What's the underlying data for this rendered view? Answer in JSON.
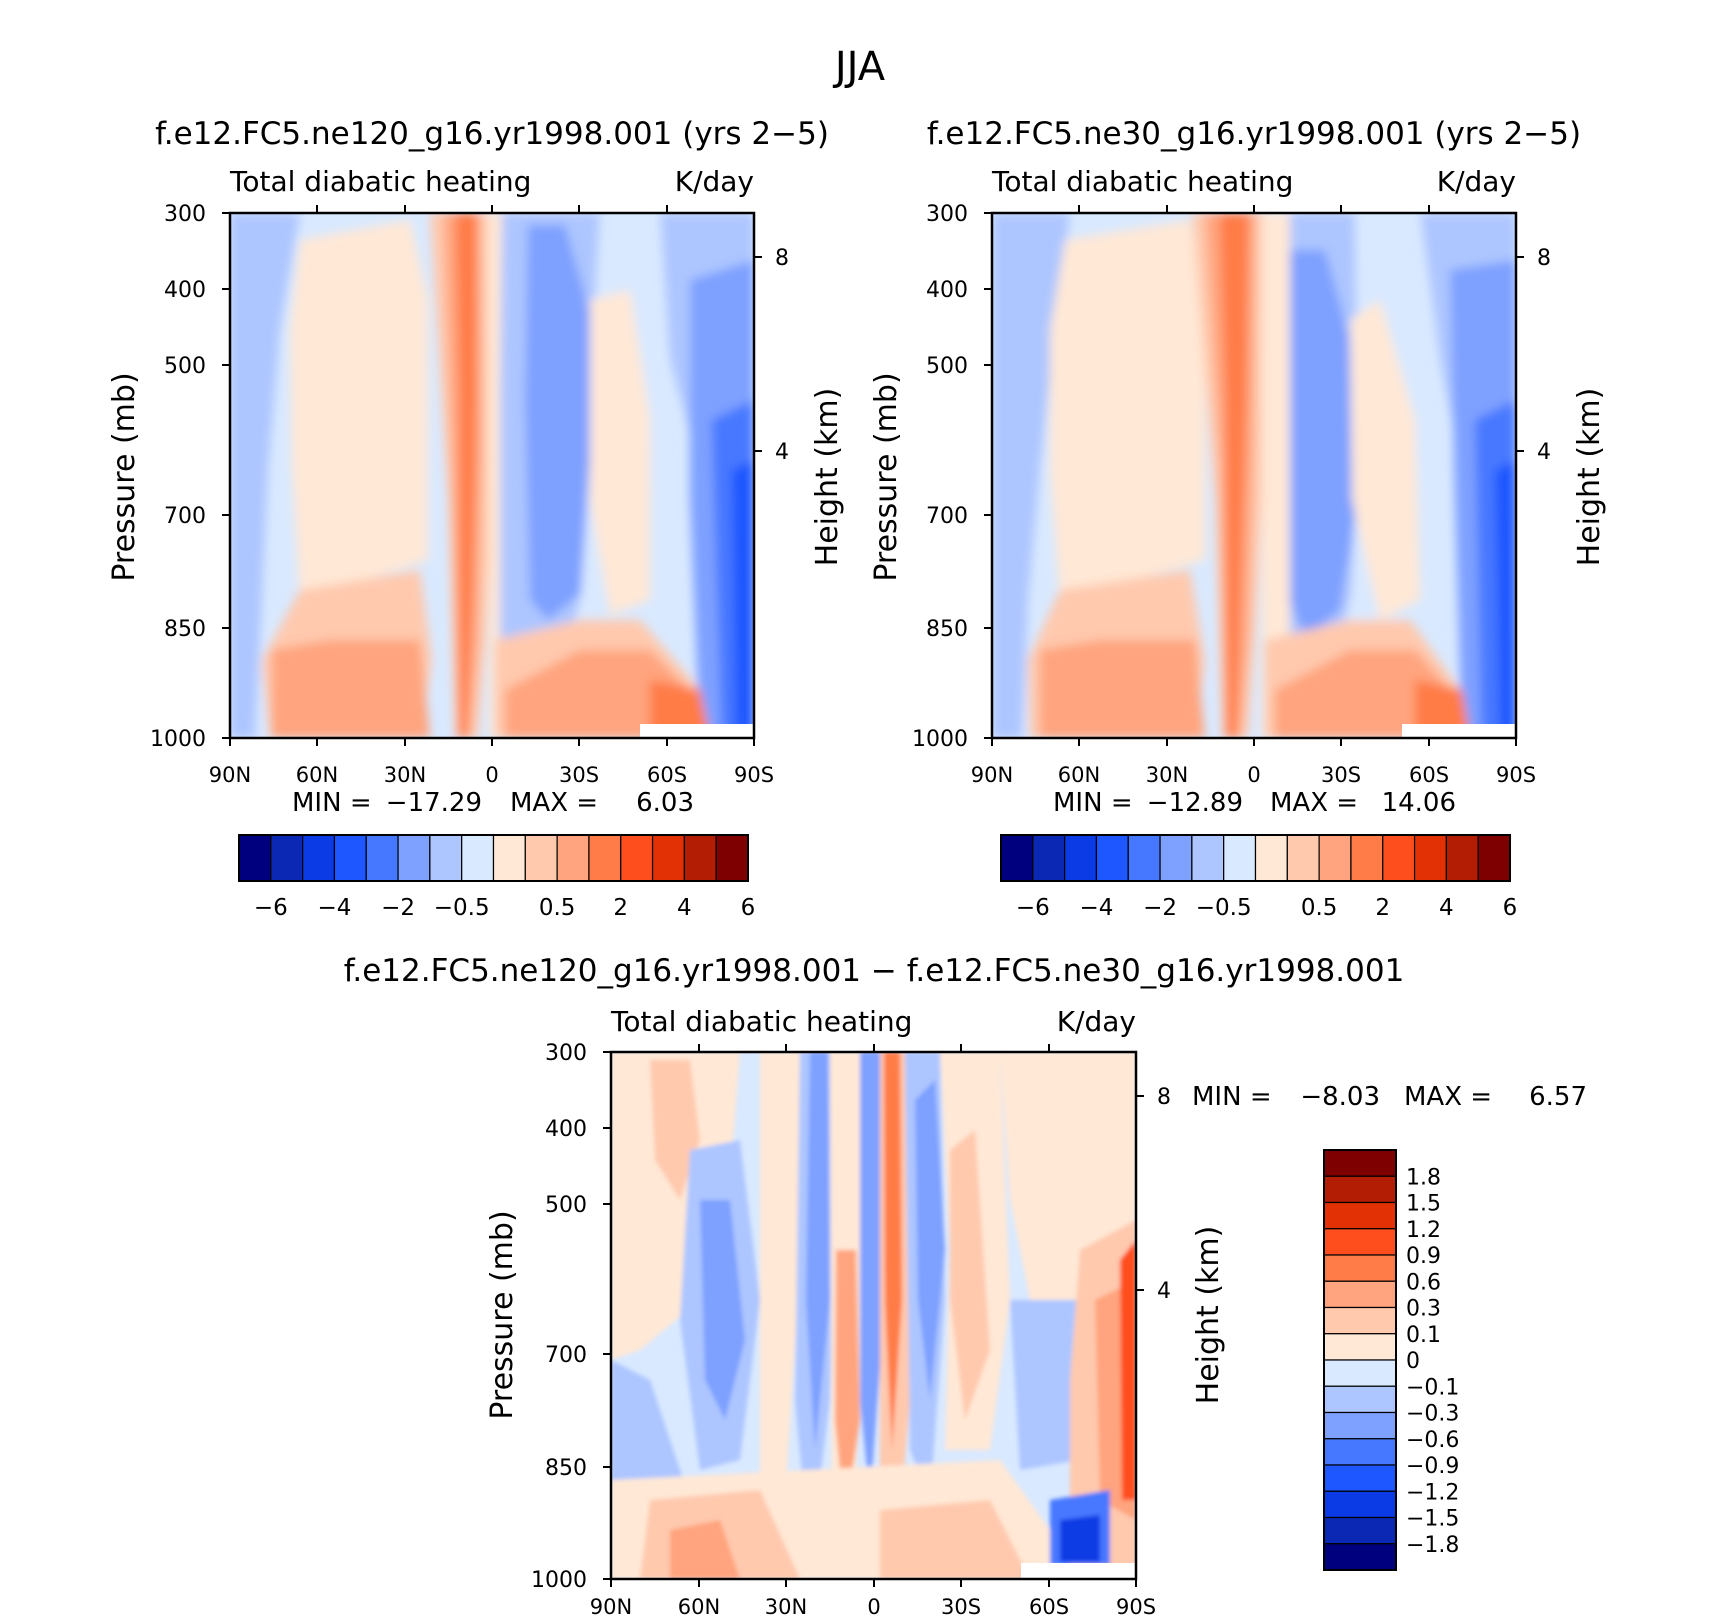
{
  "figure": {
    "title": "JJA"
  },
  "colors": {
    "main_scale": [
      "#00007f",
      "#0a28b4",
      "#0a3be4",
      "#1e56ff",
      "#4678ff",
      "#7ea0ff",
      "#adc6ff",
      "#d9e9ff",
      "#ffe8d6",
      "#ffc9ae",
      "#ffa47e",
      "#ff7b47",
      "#ff4e1e",
      "#e23205",
      "#b31d04",
      "#7e0000"
    ],
    "diff_scale": [
      "#00007f",
      "#0a28b4",
      "#0a3be4",
      "#1e56ff",
      "#4678ff",
      "#7ea0ff",
      "#adc6ff",
      "#d9e9ff",
      "#ffe8d6",
      "#ffc9ae",
      "#ffa47e",
      "#ff7b47",
      "#ff4e1e",
      "#e23205",
      "#b31d04",
      "#7e0000"
    ]
  },
  "chart_data": [
    {
      "type": "heatmap",
      "title": "f.e12.FC5.ne120_g16.yr1998.001 (yrs 2−5)",
      "subtitle_left": "Total diabatic heating",
      "subtitle_right": "K/day",
      "xlabel": "",
      "ylabel": "Pressure (mb)",
      "ylabel_right": "Height (km)",
      "x_ticks": [
        "90N",
        "60N",
        "30N",
        "0",
        "30S",
        "60S",
        "90S"
      ],
      "y_ticks": [
        "300",
        "400",
        "500",
        "700",
        "850",
        "1000"
      ],
      "y_right_ticks": [
        "8",
        "4"
      ],
      "stats": {
        "min_label": "MIN =",
        "min": "−17.29",
        "max_label": "MAX =",
        "max": "6.03"
      },
      "colorbar": {
        "orientation": "horizontal",
        "labels": [
          "−6",
          "−4",
          "−2",
          "−0.5",
          "0.5",
          "2",
          "4",
          "6"
        ]
      }
    },
    {
      "type": "heatmap",
      "title": "f.e12.FC5.ne30_g16.yr1998.001 (yrs 2−5)",
      "subtitle_left": "Total diabatic heating",
      "subtitle_right": "K/day",
      "xlabel": "",
      "ylabel": "Pressure (mb)",
      "ylabel_right": "Height (km)",
      "x_ticks": [
        "90N",
        "60N",
        "30N",
        "0",
        "30S",
        "60S",
        "90S"
      ],
      "y_ticks": [
        "300",
        "400",
        "500",
        "700",
        "850",
        "1000"
      ],
      "y_right_ticks": [
        "8",
        "4"
      ],
      "stats": {
        "min_label": "MIN =",
        "min": "−12.89",
        "max_label": "MAX =",
        "max": "14.06"
      },
      "colorbar": {
        "orientation": "horizontal",
        "labels": [
          "−6",
          "−4",
          "−2",
          "−0.5",
          "0.5",
          "2",
          "4",
          "6"
        ]
      }
    },
    {
      "type": "heatmap",
      "title": "f.e12.FC5.ne120_g16.yr1998.001 − f.e12.FC5.ne30_g16.yr1998.001",
      "subtitle_left": "Total diabatic heating",
      "subtitle_right": "K/day",
      "xlabel": "",
      "ylabel": "Pressure (mb)",
      "ylabel_right": "Height (km)",
      "x_ticks": [
        "90N",
        "60N",
        "30N",
        "0",
        "30S",
        "60S",
        "90S"
      ],
      "y_ticks": [
        "300",
        "400",
        "500",
        "700",
        "850",
        "1000"
      ],
      "y_right_ticks": [
        "8",
        "4"
      ],
      "stats": {
        "min_label": "MIN =",
        "min": "−8.03",
        "max_label": "MAX =",
        "max": "6.57"
      },
      "colorbar": {
        "orientation": "vertical",
        "labels": [
          "1.8",
          "1.5",
          "1.2",
          "0.9",
          "0.6",
          "0.3",
          "0.1",
          "0",
          "−0.1",
          "−0.3",
          "−0.6",
          "−0.9",
          "−1.2",
          "−1.5",
          "−1.8"
        ]
      }
    }
  ]
}
